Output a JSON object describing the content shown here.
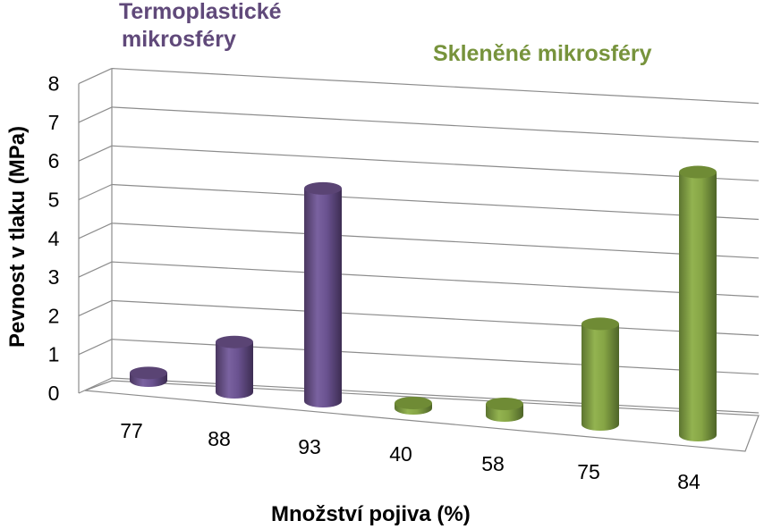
{
  "chart_data": {
    "type": "bar",
    "style": "3d-cylinder",
    "categories": [
      "77",
      "88",
      "93",
      "40",
      "58",
      "75",
      "84"
    ],
    "values": [
      0.2,
      1.3,
      5.5,
      0.05,
      0.3,
      2.6,
      6.8
    ],
    "bar_colors": [
      "#60497a",
      "#60497a",
      "#60497a",
      "#77933c",
      "#77933c",
      "#77933c",
      "#77933c"
    ],
    "groups": [
      {
        "name_lines": [
          "Termoplastické",
          "mikrosféry"
        ],
        "color": "#60497a",
        "categories": [
          "77",
          "88",
          "93"
        ]
      },
      {
        "name": "Skleněné mikrosféry",
        "color": "#77933c",
        "categories": [
          "40",
          "58",
          "75",
          "84"
        ]
      }
    ],
    "xlabel": "Množství pojiva (%)",
    "ylabel": "Pevnost v tlaku (MPa)",
    "ylim": [
      0,
      8
    ],
    "yticks": [
      "0",
      "1",
      "2",
      "3",
      "4",
      "5",
      "6",
      "7",
      "8"
    ],
    "grid": true
  }
}
